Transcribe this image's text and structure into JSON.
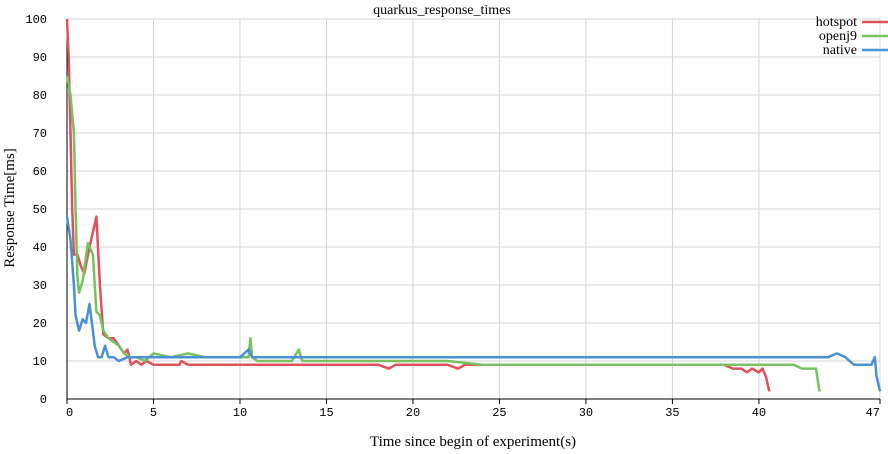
{
  "chart_data": {
    "type": "line",
    "title": "quarkus_response_times",
    "xlabel": "Time since begin of experiment(s)",
    "ylabel": "Response Time[ms]",
    "xlim": [
      0,
      47
    ],
    "ylim": [
      0,
      100
    ],
    "x_ticks": [
      "0",
      "5",
      "10",
      "15",
      "20",
      "25",
      "30",
      "35",
      "40",
      "47"
    ],
    "y_ticks": [
      "0",
      "10",
      "20",
      "30",
      "40",
      "50",
      "60",
      "70",
      "80",
      "90",
      "100"
    ],
    "grid": true,
    "legend_position": "top-right",
    "series": [
      {
        "name": "hotspot",
        "color": "#e0525a",
        "points": [
          [
            0,
            100
          ],
          [
            0.1,
            90
          ],
          [
            0.2,
            70
          ],
          [
            0.3,
            50
          ],
          [
            0.4,
            38
          ],
          [
            0.6,
            38
          ],
          [
            0.8,
            35
          ],
          [
            1.0,
            33
          ],
          [
            1.3,
            40
          ],
          [
            1.6,
            46
          ],
          [
            1.7,
            48
          ],
          [
            1.9,
            30
          ],
          [
            2.1,
            17
          ],
          [
            2.4,
            16
          ],
          [
            2.7,
            16
          ],
          [
            3.0,
            14
          ],
          [
            3.3,
            12
          ],
          [
            3.5,
            13
          ],
          [
            3.6,
            11
          ],
          [
            3.7,
            9
          ],
          [
            4.0,
            10
          ],
          [
            4.3,
            9
          ],
          [
            4.6,
            10
          ],
          [
            5.0,
            9
          ],
          [
            6.0,
            9
          ],
          [
            6.5,
            9
          ],
          [
            6.6,
            10
          ],
          [
            7.0,
            9
          ],
          [
            8.0,
            9
          ],
          [
            10.0,
            9
          ],
          [
            12.0,
            9
          ],
          [
            14.0,
            9
          ],
          [
            16.0,
            9
          ],
          [
            18.0,
            9
          ],
          [
            18.6,
            8
          ],
          [
            19.0,
            9
          ],
          [
            21.0,
            9
          ],
          [
            22.0,
            9
          ],
          [
            22.6,
            8
          ],
          [
            23.0,
            9
          ],
          [
            26.0,
            9
          ],
          [
            30.0,
            9
          ],
          [
            34.0,
            9
          ],
          [
            38.0,
            9
          ],
          [
            38.5,
            8
          ],
          [
            39.0,
            8
          ],
          [
            39.3,
            7
          ],
          [
            39.6,
            8
          ],
          [
            40.0,
            7
          ],
          [
            40.2,
            8
          ],
          [
            40.4,
            6
          ],
          [
            40.6,
            2
          ]
        ]
      },
      {
        "name": "openj9",
        "color": "#77c15f",
        "points": [
          [
            0,
            85
          ],
          [
            0.2,
            80
          ],
          [
            0.4,
            70
          ],
          [
            0.5,
            50
          ],
          [
            0.6,
            32
          ],
          [
            0.7,
            28
          ],
          [
            0.9,
            31
          ],
          [
            1.2,
            41
          ],
          [
            1.5,
            38
          ],
          [
            1.7,
            23
          ],
          [
            1.9,
            22
          ],
          [
            2.1,
            18
          ],
          [
            2.4,
            16
          ],
          [
            2.7,
            15
          ],
          [
            3.0,
            14
          ],
          [
            3.3,
            12
          ],
          [
            3.6,
            11
          ],
          [
            4.0,
            11
          ],
          [
            4.5,
            10
          ],
          [
            5.0,
            12
          ],
          [
            6.0,
            11
          ],
          [
            7.0,
            12
          ],
          [
            8.0,
            11
          ],
          [
            9.0,
            11
          ],
          [
            10.0,
            11
          ],
          [
            10.5,
            11
          ],
          [
            10.6,
            16
          ],
          [
            10.7,
            11
          ],
          [
            11.0,
            10
          ],
          [
            12.0,
            10
          ],
          [
            13.0,
            10
          ],
          [
            13.4,
            13
          ],
          [
            13.6,
            10
          ],
          [
            15.0,
            10
          ],
          [
            18.0,
            10
          ],
          [
            20.0,
            10
          ],
          [
            22.0,
            10
          ],
          [
            24.0,
            9
          ],
          [
            27.0,
            9
          ],
          [
            30.0,
            9
          ],
          [
            34.0,
            9
          ],
          [
            38.0,
            9
          ],
          [
            39.0,
            9
          ],
          [
            40.0,
            9
          ],
          [
            41.0,
            9
          ],
          [
            42.0,
            9
          ],
          [
            42.5,
            8
          ],
          [
            43.0,
            8
          ],
          [
            43.3,
            8
          ],
          [
            43.5,
            2
          ]
        ]
      },
      {
        "name": "native",
        "color": "#4a90d4",
        "points": [
          [
            0,
            48
          ],
          [
            0.2,
            42
          ],
          [
            0.4,
            30
          ],
          [
            0.5,
            22
          ],
          [
            0.7,
            18
          ],
          [
            0.9,
            21
          ],
          [
            1.1,
            20
          ],
          [
            1.3,
            25
          ],
          [
            1.5,
            18
          ],
          [
            1.6,
            14
          ],
          [
            1.8,
            11
          ],
          [
            2.0,
            11
          ],
          [
            2.2,
            14
          ],
          [
            2.4,
            11
          ],
          [
            2.7,
            11
          ],
          [
            3.0,
            10
          ],
          [
            3.5,
            11
          ],
          [
            4.0,
            11
          ],
          [
            5.0,
            11
          ],
          [
            6.0,
            11
          ],
          [
            8.0,
            11
          ],
          [
            10.0,
            11
          ],
          [
            10.5,
            13
          ],
          [
            10.7,
            11
          ],
          [
            12.0,
            11
          ],
          [
            14.0,
            11
          ],
          [
            16.0,
            11
          ],
          [
            18.0,
            11
          ],
          [
            20.0,
            11
          ],
          [
            22.0,
            11
          ],
          [
            24.0,
            11
          ],
          [
            26.0,
            11
          ],
          [
            28.0,
            11
          ],
          [
            30.0,
            11
          ],
          [
            32.0,
            11
          ],
          [
            34.0,
            11
          ],
          [
            36.0,
            11
          ],
          [
            38.0,
            11
          ],
          [
            40.0,
            11
          ],
          [
            42.0,
            11
          ],
          [
            44.0,
            11
          ],
          [
            44.5,
            12
          ],
          [
            45.0,
            11
          ],
          [
            45.5,
            9
          ],
          [
            46.0,
            9
          ],
          [
            46.5,
            9
          ],
          [
            46.7,
            11
          ],
          [
            46.8,
            6
          ],
          [
            47.0,
            2
          ]
        ]
      }
    ]
  }
}
